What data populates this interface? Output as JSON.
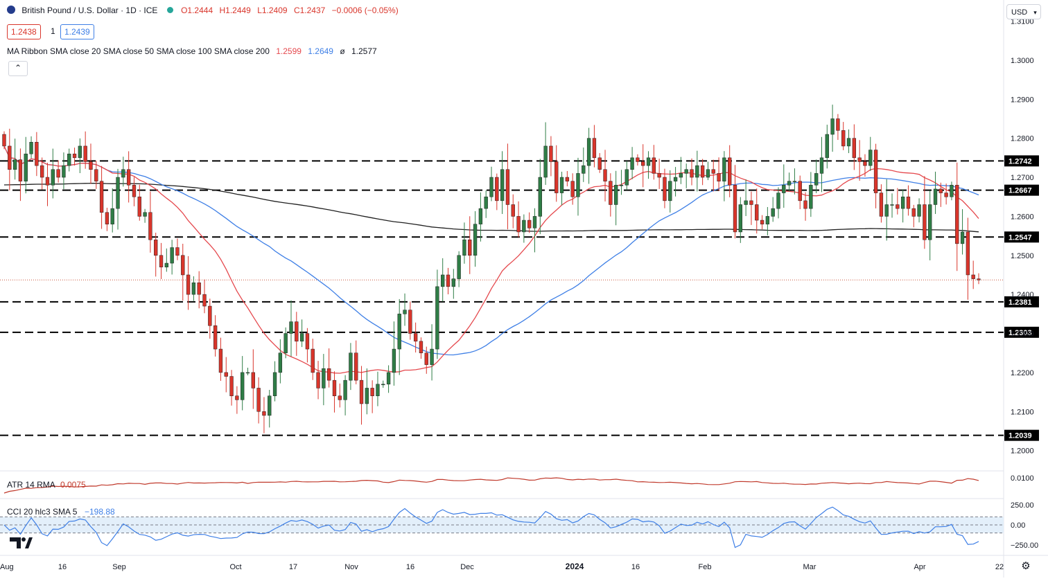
{
  "header": {
    "symbol_title": "British Pound / U.S. Dollar · 1D · ICE",
    "ohlc": {
      "o": "O1.2444",
      "h": "H1.2449",
      "l": "L1.2409",
      "c": "C1.2437",
      "change": "−0.0006 (−0.05%)"
    },
    "bid_price": "1.2438",
    "spread": "1",
    "ask_price": "1.2439",
    "ma_ribbon_label": "MA Ribbon SMA close 20 SMA close 50 SMA close 100 SMA close 200",
    "ma_values": [
      "1.2599",
      "1.2649",
      "ø",
      "1.2577"
    ],
    "currency_button": "USD",
    "collapse_symbol": "⌃"
  },
  "colors": {
    "up": "#2f7d46",
    "down": "#d9352b",
    "sma20": "#e5484d",
    "sma50": "#3e7fe6",
    "sma200": "#1f1f1f",
    "atr": "#c0392b",
    "cci": "#3e7fe6",
    "cci_band": "#e3effa",
    "level_line": "#000000",
    "label_bg": "#000000",
    "price_line": "#c9553b"
  },
  "chart_data": [
    {
      "type": "candlestick",
      "title": "British Pound / U.S. Dollar",
      "ylim": [
        1.1955,
        1.314
      ],
      "y_ticks": [
        "1.2000",
        "1.2100",
        "1.2200",
        "1.2300",
        "1.2400",
        "1.2500",
        "1.2600",
        "1.2700",
        "1.2800",
        "1.2900",
        "1.3000",
        "1.3100"
      ],
      "x_tick_labels": [
        "Aug",
        "16",
        "Sep",
        "Oct",
        "17",
        "Nov",
        "16",
        "Dec",
        "2024",
        "16",
        "Feb",
        "Mar",
        "Apr",
        "22"
      ],
      "current_price": 1.2437,
      "horizontal_levels": [
        "1.2742",
        "1.2667",
        "1.2547",
        "1.2381",
        "1.2303",
        "1.2039"
      ],
      "closes": [
        1.278,
        1.272,
        1.2745,
        1.269,
        1.276,
        1.279,
        1.273,
        1.27,
        1.268,
        1.272,
        1.27,
        1.273,
        1.276,
        1.275,
        1.278,
        1.274,
        1.272,
        1.269,
        1.261,
        1.258,
        1.262,
        1.27,
        1.272,
        1.268,
        1.265,
        1.26,
        1.261,
        1.254,
        1.25,
        1.247,
        1.248,
        1.252,
        1.25,
        1.245,
        1.24,
        1.243,
        1.24,
        1.237,
        1.232,
        1.226,
        1.22,
        1.219,
        1.214,
        1.213,
        1.22,
        1.22,
        1.216,
        1.21,
        1.209,
        1.214,
        1.22,
        1.225,
        1.23,
        1.233,
        1.228,
        1.23,
        1.226,
        1.22,
        1.216,
        1.221,
        1.218,
        1.214,
        1.213,
        1.218,
        1.225,
        1.218,
        1.212,
        1.216,
        1.214,
        1.217,
        1.217,
        1.22,
        1.226,
        1.235,
        1.236,
        1.23,
        1.228,
        1.225,
        1.222,
        1.226,
        1.242,
        1.245,
        1.242,
        1.244,
        1.25,
        1.254,
        1.25,
        1.258,
        1.262,
        1.265,
        1.27,
        1.264,
        1.272,
        1.263,
        1.26,
        1.256,
        1.259,
        1.257,
        1.26,
        1.27,
        1.278,
        1.274,
        1.266,
        1.27,
        1.269,
        1.265,
        1.271,
        1.273,
        1.28,
        1.275,
        1.272,
        1.269,
        1.263,
        1.268,
        1.268,
        1.272,
        1.275,
        1.274,
        1.273,
        1.275,
        1.271,
        1.27,
        1.264,
        1.269,
        1.27,
        1.271,
        1.272,
        1.27,
        1.273,
        1.27,
        1.272,
        1.271,
        1.269,
        1.275,
        1.268,
        1.256,
        1.263,
        1.264,
        1.263,
        1.259,
        1.258,
        1.26,
        1.262,
        1.266,
        1.268,
        1.269,
        1.269,
        1.264,
        1.262,
        1.268,
        1.271,
        1.275,
        1.281,
        1.285,
        1.282,
        1.278,
        1.28,
        1.275,
        1.274,
        1.273,
        1.277,
        1.266,
        1.26,
        1.263,
        1.263,
        1.262,
        1.265,
        1.262,
        1.26,
        1.263,
        1.254,
        1.263,
        1.267,
        1.266,
        1.265,
        1.268,
        1.253,
        1.256,
        1.245,
        1.244,
        1.2437
      ]
    },
    {
      "type": "line",
      "title": "ATR 14 RMA",
      "value_label": "0.0075",
      "y_ticks": [
        "0.0100"
      ]
    },
    {
      "type": "line",
      "title": "CCI 20 hlc3 SMA 5",
      "value_label": "−198.88",
      "y_ticks": [
        "250.00",
        "0.00",
        "−250.00"
      ],
      "band": [
        -100,
        100
      ]
    }
  ]
}
